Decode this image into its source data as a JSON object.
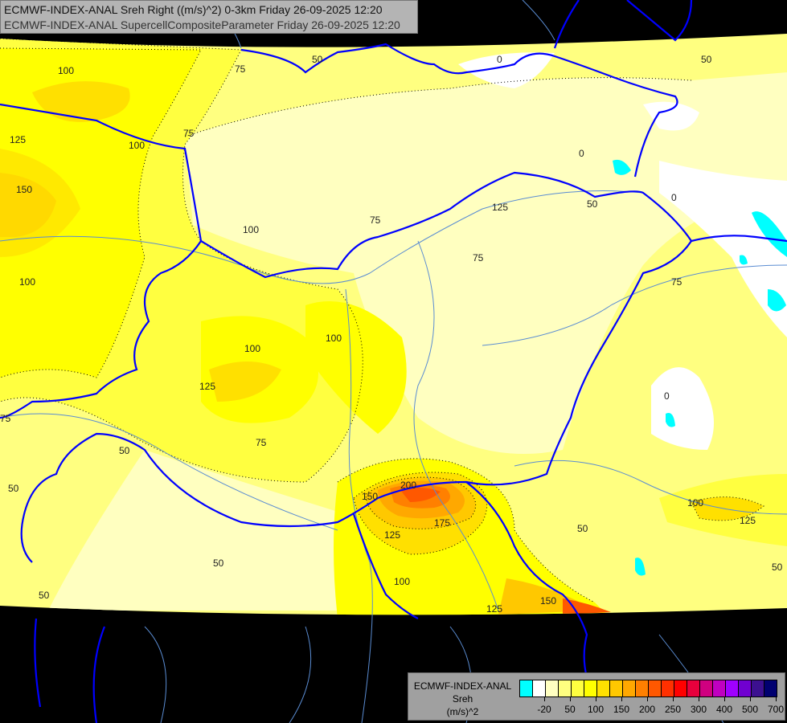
{
  "header": {
    "line1": "ECMWF-INDEX-ANAL Sreh Right ((m/s)^2) 0-3km Friday 26-09-2025 12:20",
    "line2": "ECMWF-INDEX-ANAL SupercellCompositeParameter Friday 26-09-2025 12:20"
  },
  "legend": {
    "line1": "ECMWF-INDEX-ANAL",
    "line2": "Sreh",
    "line3": "(m/s)^2",
    "colors": [
      "#00ffff",
      "#ffffff",
      "#ffffc0",
      "#ffff80",
      "#ffff40",
      "#ffff00",
      "#ffe000",
      "#ffc800",
      "#ffa800",
      "#ff8000",
      "#ff5800",
      "#ff3000",
      "#ff0000",
      "#e8003c",
      "#d00080",
      "#c000c0",
      "#a000ff",
      "#7000d0",
      "#3c1090",
      "#000070"
    ],
    "tick_labels": [
      "-20",
      "50",
      "100",
      "150",
      "200",
      "250",
      "300",
      "400",
      "500",
      "700"
    ]
  },
  "map": {
    "colors": {
      "border": "#0000ff",
      "river": "#5a8cd2",
      "no_data": "#000000"
    },
    "contour_labels": [
      "100",
      "75",
      "50",
      "0",
      "0",
      "50",
      "125",
      "150",
      "100",
      "100",
      "75",
      "100",
      "100",
      "125",
      "75",
      "50",
      "75",
      "50",
      "50",
      "0",
      "75",
      "75",
      "50",
      "125",
      "100",
      "200",
      "150",
      "175",
      "125",
      "100",
      "125",
      "150",
      "50",
      "100",
      "125",
      "75",
      "50",
      "0",
      "50"
    ]
  }
}
